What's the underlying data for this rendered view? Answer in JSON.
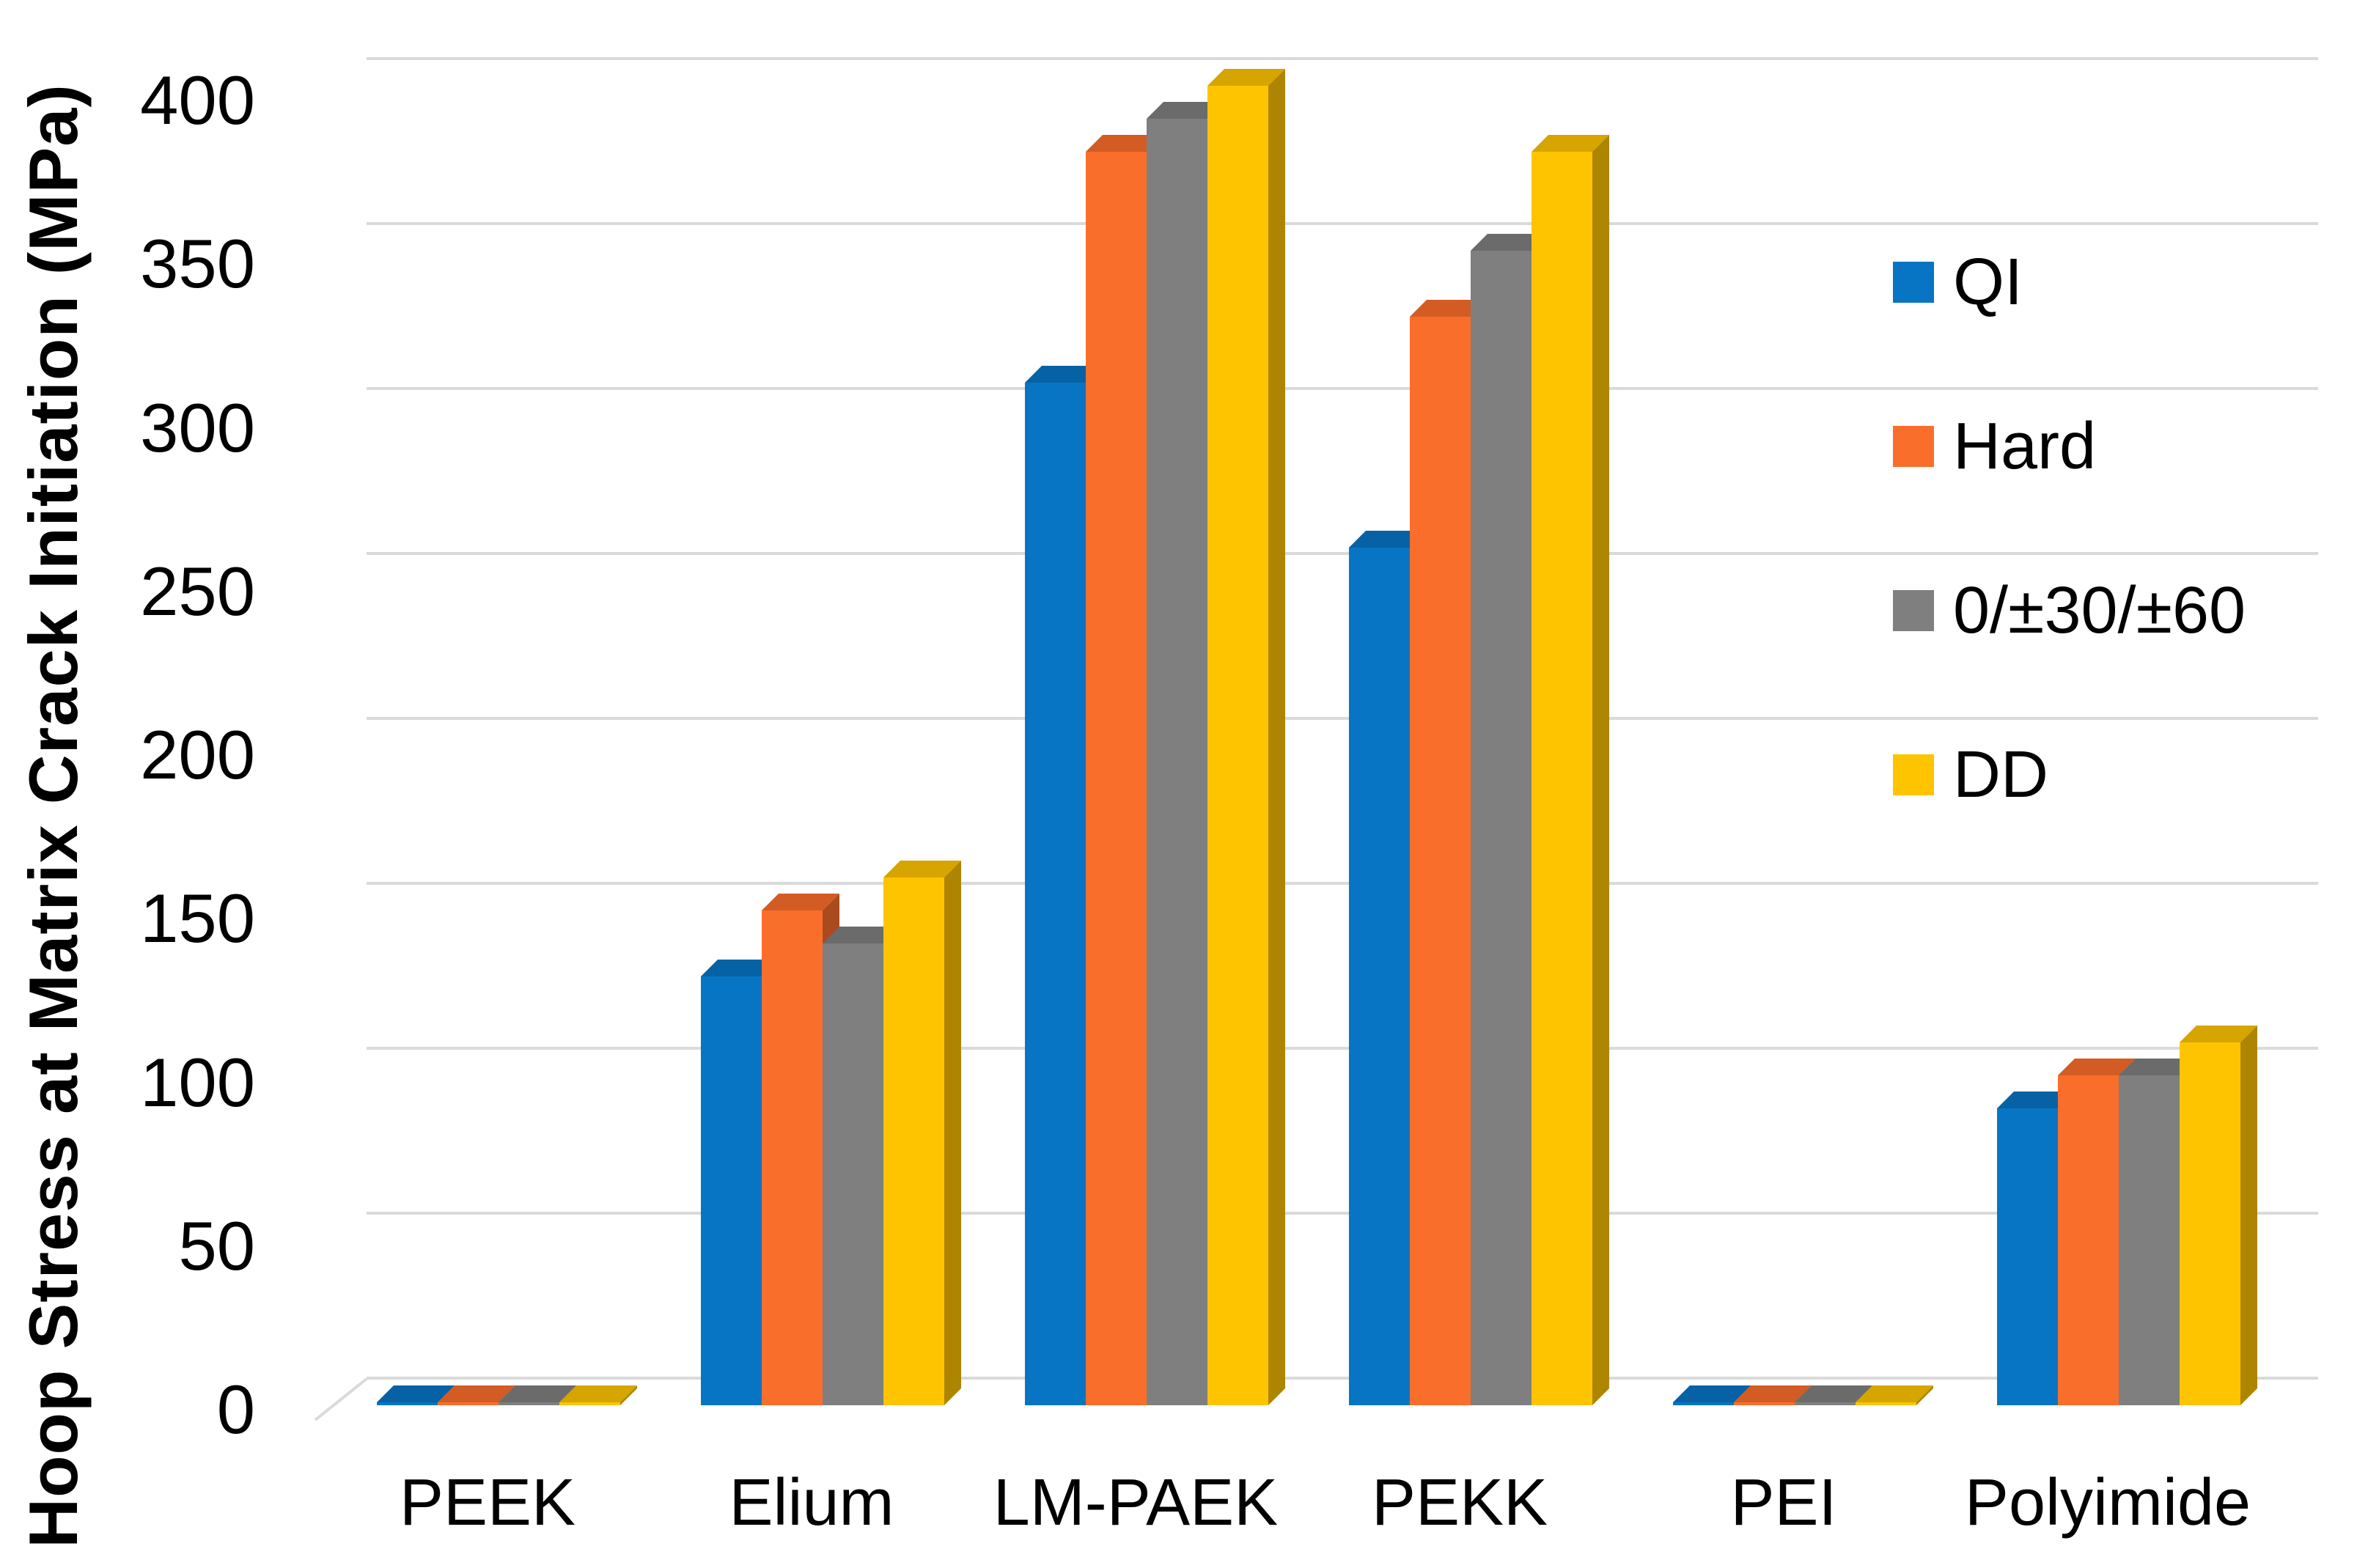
{
  "chart_data": {
    "type": "bar",
    "projection": "3d-clustered-column",
    "title": "",
    "xlabel": "",
    "ylabel": "Hoop Stress at Matrix Crack Initiation (MPa)",
    "categories": [
      "PEEK",
      "Elium",
      "LM-PAEK",
      "PEKK",
      "PEI",
      "Polyimide"
    ],
    "series": [
      {
        "name": "QI",
        "color": "#0775C4",
        "values": [
          0,
          130,
          310,
          260,
          0,
          90
        ]
      },
      {
        "name": "Hard",
        "color": "#FA6E2B",
        "values": [
          0,
          150,
          380,
          330,
          0,
          100
        ]
      },
      {
        "name": "0/±30/±60",
        "color": "#7F7F7F",
        "values": [
          0,
          140,
          390,
          350,
          0,
          100
        ]
      },
      {
        "name": "DD",
        "color": "#FFC400",
        "values": [
          0,
          160,
          400,
          380,
          0,
          110
        ]
      }
    ],
    "ylim": [
      0,
      400
    ],
    "ytick_step": 50,
    "yticks": [
      0,
      50,
      100,
      150,
      200,
      250,
      300,
      350,
      400
    ],
    "grid": true,
    "gridline_color": "#DADADA",
    "legend_position": "right",
    "background": "#FFFFFF",
    "text_color": "#000000"
  }
}
